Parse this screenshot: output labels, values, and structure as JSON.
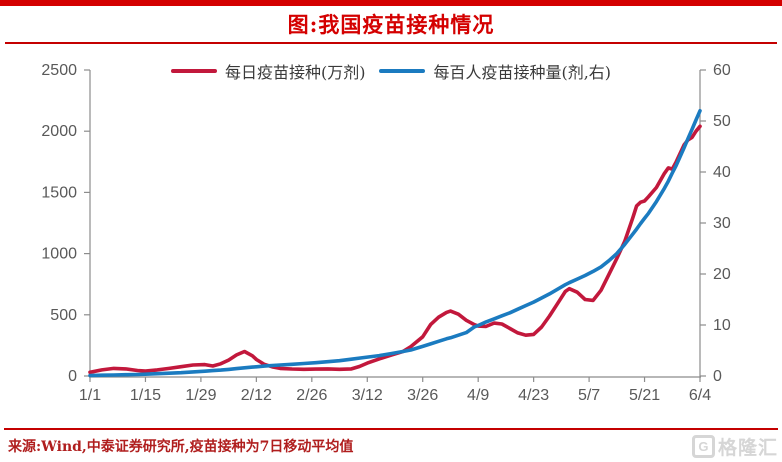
{
  "title": "图:我国疫苗接种情况",
  "source_note": "来源:Wind,中泰证券研究所,疫苗接种为7日移动平均值",
  "watermark": {
    "icon": "G",
    "text": "格隆汇"
  },
  "colors": {
    "accent_red": "#d40000",
    "line_red": "#c2183c",
    "line_blue": "#1b7bc0",
    "axis_gray": "#8c8c8c",
    "tick_text": "#595959",
    "source_text": "#b01e1e",
    "watermark_gray": "#d6d6d6"
  },
  "chart_data": {
    "type": "line",
    "title": "图:我国疫苗接种情况",
    "legend_position": "top",
    "grid": false,
    "x_unit": "days_since_jan1",
    "x_max": 154,
    "x_tick_days": [
      0,
      14,
      28,
      42,
      56,
      70,
      84,
      98,
      112,
      126,
      140,
      154
    ],
    "x_tick_labels": [
      "1/1",
      "1/15",
      "1/29",
      "2/12",
      "2/26",
      "3/12",
      "3/26",
      "4/9",
      "4/23",
      "5/7",
      "5/21",
      "6/4"
    ],
    "y_left": {
      "min": 0,
      "max": 2500,
      "ticks": [
        0,
        500,
        1000,
        1500,
        2000,
        2500
      ]
    },
    "y_right": {
      "min": 0,
      "max": 60,
      "ticks": [
        0,
        10,
        20,
        30,
        40,
        50,
        60
      ]
    },
    "days": [
      0,
      3,
      6,
      9,
      12,
      14,
      17,
      20,
      23,
      26,
      29,
      31,
      33,
      35,
      37,
      39,
      41,
      42,
      44,
      46,
      48,
      51,
      54,
      57,
      60,
      63,
      66,
      68,
      70,
      73,
      76,
      79,
      81,
      84,
      86,
      88,
      90,
      91,
      93,
      95,
      97,
      98,
      100,
      102,
      104,
      106,
      108,
      110,
      112,
      114,
      116,
      118,
      120,
      121,
      123,
      125,
      127,
      129,
      131,
      133,
      135,
      137,
      138,
      139,
      140,
      141,
      143,
      145,
      146,
      147,
      148,
      150,
      151,
      152,
      153,
      154
    ],
    "series": [
      {
        "name": "每日疫苗接种(万剂)",
        "axis": "left",
        "color": "#c2183c",
        "values": [
          30,
          50,
          62,
          58,
          45,
          40,
          50,
          62,
          76,
          90,
          93,
          82,
          100,
          130,
          172,
          200,
          165,
          135,
          95,
          75,
          62,
          57,
          55,
          56,
          58,
          55,
          58,
          78,
          105,
          140,
          170,
          200,
          240,
          320,
          420,
          480,
          520,
          530,
          505,
          455,
          420,
          408,
          405,
          432,
          425,
          388,
          352,
          333,
          340,
          400,
          490,
          590,
          690,
          713,
          685,
          625,
          618,
          700,
          830,
          960,
          1100,
          1290,
          1390,
          1420,
          1430,
          1465,
          1540,
          1655,
          1700,
          1690,
          1750,
          1890,
          1930,
          1950,
          2000,
          2040
        ]
      },
      {
        "name": "每百人疫苗接种量(剂,右)",
        "axis": "right",
        "color": "#1b7bc0",
        "values": [
          0.1,
          0.15,
          0.2,
          0.25,
          0.3,
          0.35,
          0.45,
          0.55,
          0.65,
          0.8,
          0.95,
          1.05,
          1.15,
          1.3,
          1.45,
          1.6,
          1.75,
          1.8,
          1.95,
          2.05,
          2.15,
          2.3,
          2.45,
          2.6,
          2.8,
          3.0,
          3.3,
          3.5,
          3.7,
          4.0,
          4.4,
          4.8,
          5.1,
          5.8,
          6.3,
          6.8,
          7.3,
          7.5,
          8.0,
          8.5,
          9.6,
          9.9,
          10.6,
          11.2,
          11.8,
          12.4,
          13.1,
          13.8,
          14.5,
          15.3,
          16.1,
          17.0,
          17.9,
          18.3,
          19.0,
          19.7,
          20.5,
          21.4,
          22.6,
          24.0,
          25.8,
          27.8,
          28.8,
          29.9,
          30.9,
          31.9,
          34.2,
          36.8,
          38.2,
          39.8,
          41.3,
          44.8,
          46.6,
          48.4,
          50.2,
          52.0
        ]
      }
    ]
  }
}
